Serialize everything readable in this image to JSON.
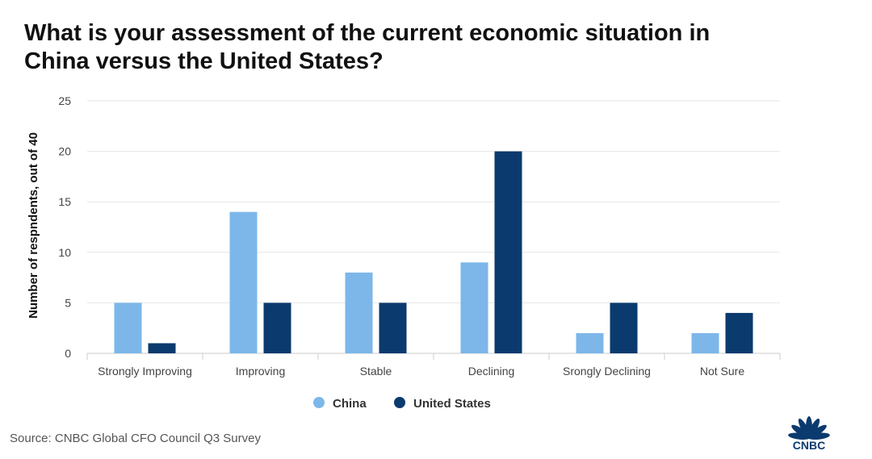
{
  "chart_data": {
    "type": "bar",
    "title_lines": [
      "What is your assessment of the current economic situation in",
      "China versus the United States?"
    ],
    "categories": [
      "Strongly Improving",
      "Improving",
      "Stable",
      "Declining",
      "Srongly Declining",
      "Not Sure"
    ],
    "series": [
      {
        "name": "China",
        "color": "#7db7ea",
        "values": [
          5,
          14,
          8,
          9,
          2,
          2
        ]
      },
      {
        "name": "United States",
        "color": "#0b3a6e",
        "values": [
          1,
          5,
          5,
          20,
          5,
          4
        ]
      }
    ],
    "ylabel": "Number of respndents, out of 40",
    "xlabel": "",
    "ylim": [
      0,
      25
    ],
    "yticks": [
      0,
      5,
      10,
      15,
      20,
      25
    ],
    "grid": true,
    "legend_position": "bottom-center"
  },
  "source": "Source: CNBC Global CFO Council Q3 Survey",
  "logo_text": "CNBC",
  "colors": {
    "grid": "#e6e6e6",
    "tick_text": "#444444",
    "logo_blue": "#0b3a6e"
  }
}
